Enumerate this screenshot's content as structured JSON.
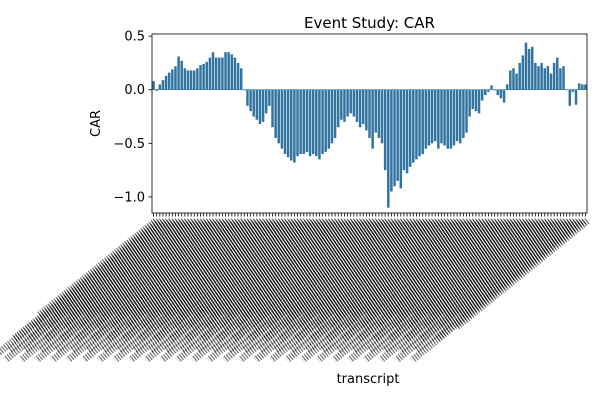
{
  "chart_data": {
    "type": "bar",
    "title": "Event Study: CAR",
    "xlabel": "transcript",
    "ylabel": "CAR",
    "ylim": [
      -1.15,
      0.52
    ],
    "yticks": [
      0.5,
      0.0,
      -0.5,
      -1.0
    ],
    "ytick_labels": [
      "0.5",
      "0.0",
      "−0.5",
      "−1.0"
    ],
    "bar_color": "#3274a1",
    "values": [
      0.08,
      -0.01,
      0.05,
      0.09,
      0.13,
      0.16,
      0.19,
      0.22,
      0.31,
      0.27,
      0.2,
      0.18,
      0.18,
      0.18,
      0.2,
      0.23,
      0.24,
      0.26,
      0.3,
      0.35,
      0.3,
      0.3,
      0.3,
      0.35,
      0.35,
      0.33,
      0.3,
      0.25,
      0.2,
      0.0,
      -0.15,
      -0.2,
      -0.25,
      -0.28,
      -0.32,
      -0.3,
      -0.22,
      -0.15,
      -0.35,
      -0.45,
      -0.5,
      -0.55,
      -0.6,
      -0.63,
      -0.66,
      -0.68,
      -0.62,
      -0.6,
      -0.6,
      -0.58,
      -0.62,
      -0.6,
      -0.62,
      -0.65,
      -0.6,
      -0.58,
      -0.55,
      -0.5,
      -0.45,
      -0.35,
      -0.28,
      -0.3,
      -0.25,
      -0.22,
      -0.25,
      -0.3,
      -0.35,
      -0.32,
      -0.38,
      -0.45,
      -0.55,
      -0.4,
      -0.45,
      -0.5,
      -0.75,
      -1.1,
      -0.95,
      -0.9,
      -0.85,
      -0.92,
      -0.75,
      -0.78,
      -0.72,
      -0.68,
      -0.65,
      -0.62,
      -0.6,
      -0.55,
      -0.52,
      -0.5,
      -0.48,
      -0.55,
      -0.5,
      -0.52,
      -0.55,
      -0.55,
      -0.52,
      -0.48,
      -0.5,
      -0.45,
      -0.4,
      -0.25,
      -0.18,
      -0.2,
      -0.22,
      -0.1,
      -0.05,
      -0.02,
      0.04,
      0.0,
      -0.05,
      -0.08,
      -0.12,
      0.05,
      0.18,
      0.2,
      0.15,
      0.25,
      0.32,
      0.44,
      0.38,
      0.4,
      0.25,
      0.22,
      0.25,
      0.2,
      0.22,
      0.15,
      0.25,
      0.3,
      0.2,
      0.22,
      0.0,
      -0.15,
      -0.02,
      -0.14,
      0.06,
      0.05,
      0.05
    ],
    "grid": false,
    "legend": "none"
  }
}
